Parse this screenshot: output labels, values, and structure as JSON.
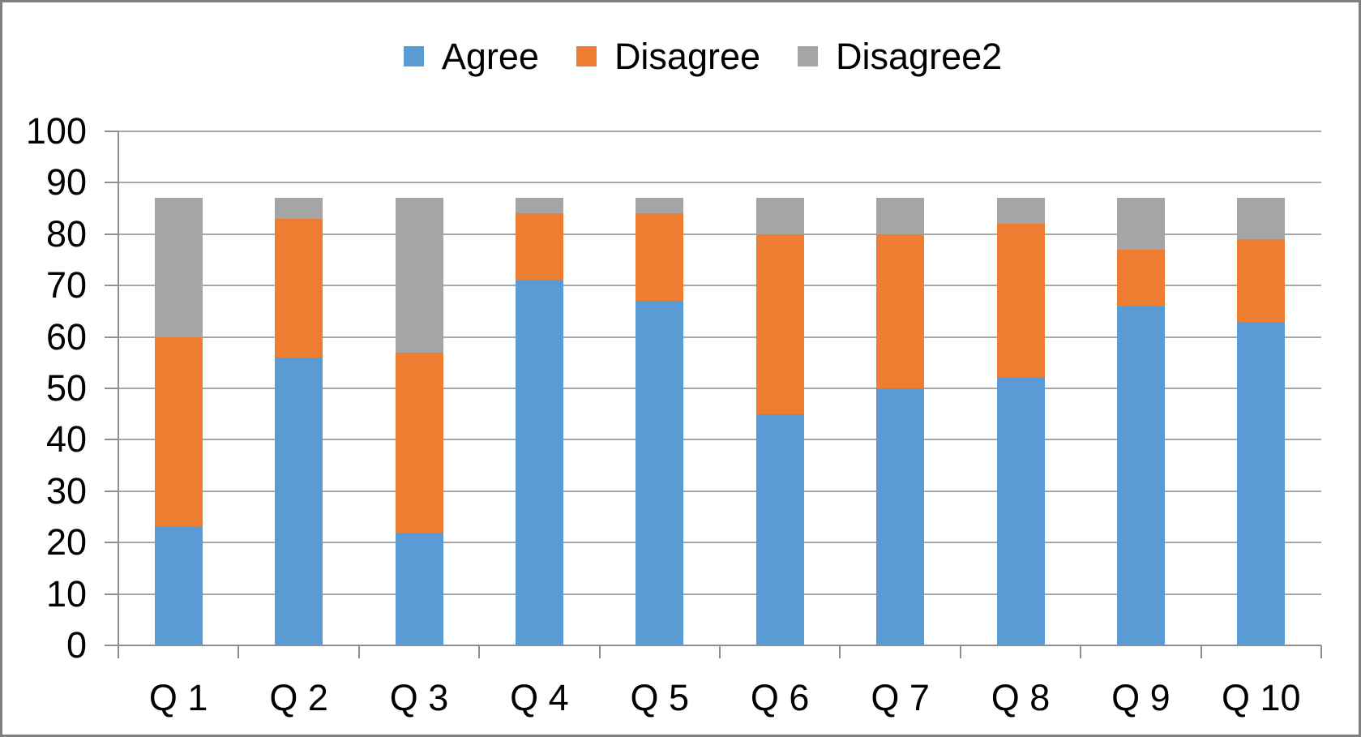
{
  "chart_data": {
    "type": "bar",
    "stacked": true,
    "title": "",
    "xlabel": "",
    "ylabel": "",
    "categories": [
      "Q 1",
      "Q 2",
      "Q 3",
      "Q 4",
      "Q 5",
      "Q 6",
      "Q 7",
      "Q 8",
      "Q 9",
      "Q 10"
    ],
    "series": [
      {
        "name": "Agree",
        "color": "#5B9BD5",
        "values": [
          23,
          56,
          22,
          71,
          67,
          45,
          50,
          52,
          66,
          63
        ]
      },
      {
        "name": "Disagree",
        "color": "#ED7D31",
        "values": [
          37,
          27,
          35,
          13,
          17,
          35,
          30,
          30,
          11,
          16
        ]
      },
      {
        "name": "Disagree2",
        "color": "#A5A5A5",
        "values": [
          27,
          4,
          30,
          3,
          3,
          7,
          7,
          5,
          10,
          8
        ]
      }
    ],
    "stack_totals": [
      87,
      87,
      87,
      87,
      87,
      87,
      87,
      87,
      87,
      87
    ],
    "ylim": [
      0,
      100
    ],
    "ytick_step": 10,
    "ytick_labels": [
      "0",
      "10",
      "20",
      "30",
      "40",
      "50",
      "60",
      "70",
      "80",
      "90",
      "100"
    ],
    "grid": true,
    "legend_position": "top",
    "colors": {
      "grid_color": "#a6a6a6",
      "axis_color": "#8e8e8e",
      "text_color": "#000000",
      "frame_border": "#7f7f7f"
    }
  }
}
